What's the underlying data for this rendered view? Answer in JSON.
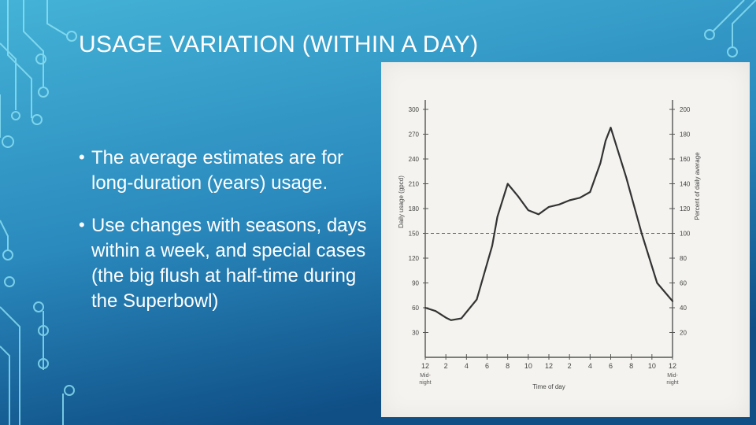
{
  "slide": {
    "title": "USAGE VARIATION (WITHIN A DAY)",
    "bullets": [
      {
        "text": "The average estimates are for long-duration (years) usage."
      },
      {
        "text": "Use changes with seasons, days within a week, and special cases (the big flush at half-time during the Superbowl)"
      }
    ]
  },
  "colors": {
    "background_top": "#3aa9cf",
    "background_bottom": "#125a91",
    "circuit": "#8fe3f5"
  },
  "chart_data": {
    "type": "line",
    "xlabel": "Time of day",
    "ylabel": "Daily usage (gpcd)",
    "ylabel_right": "Percent of daily average",
    "x_tick_labels": [
      "12",
      "2",
      "4",
      "6",
      "8",
      "10",
      "12",
      "2",
      "4",
      "6",
      "8",
      "10",
      "12"
    ],
    "x_sublabels": [
      {
        "index": 0,
        "text": "Mid-\nnight"
      },
      {
        "index": 12,
        "text": "Mid-\nnight"
      }
    ],
    "xlim": [
      0,
      24
    ],
    "y_left_ticks": [
      30,
      60,
      90,
      120,
      150,
      180,
      210,
      240,
      270,
      300
    ],
    "y_right_ticks": [
      20,
      40,
      60,
      80,
      100,
      120,
      140,
      160,
      180,
      200
    ],
    "ylim_left": [
      0,
      300
    ],
    "average_line": 150,
    "series": [
      {
        "name": "Daily usage",
        "x": [
          0,
          1,
          2,
          2.5,
          3.5,
          5,
          6.5,
          7,
          8,
          9,
          10,
          11,
          12,
          13,
          14,
          15,
          16,
          17,
          17.5,
          18,
          19.5,
          21,
          22.5,
          24
        ],
        "y": [
          60,
          56,
          48,
          45,
          47,
          70,
          135,
          170,
          210,
          195,
          178,
          173,
          182,
          185,
          190,
          193,
          200,
          235,
          262,
          278,
          218,
          150,
          90,
          68
        ]
      }
    ]
  }
}
